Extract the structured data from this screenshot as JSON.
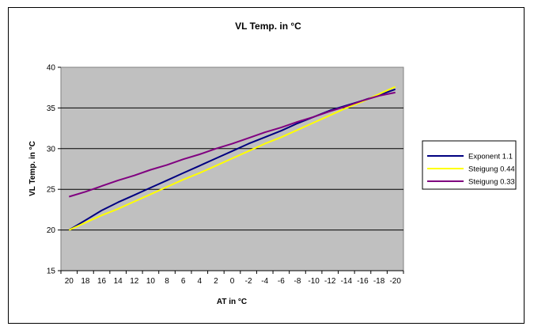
{
  "chart_data": {
    "type": "line",
    "title": "VL Temp. in °C",
    "xlabel": "AT in °C",
    "ylabel": "VL Temp. in °C",
    "x": [
      20,
      18,
      16,
      14,
      12,
      10,
      8,
      6,
      4,
      2,
      0,
      -2,
      -4,
      -6,
      -8,
      -10,
      -12,
      -14,
      -16,
      -18,
      -20
    ],
    "ylim": [
      15,
      40
    ],
    "yticks": [
      15,
      20,
      25,
      30,
      35,
      40
    ],
    "grid": true,
    "legend_position": "right",
    "plot_background": "#c0c0c0",
    "series": [
      {
        "name": "Exponent 1.1",
        "color": "#000080",
        "values": [
          20.0,
          21.2,
          22.4,
          23.4,
          24.3,
          25.2,
          26.1,
          27.0,
          27.9,
          28.8,
          29.7,
          30.6,
          31.4,
          32.2,
          33.1,
          33.9,
          34.7,
          35.3,
          35.9,
          36.6,
          37.3
        ]
      },
      {
        "name": "Steigung 0.44",
        "color": "#ffff00",
        "values": [
          20.0,
          20.9,
          21.8,
          22.6,
          23.5,
          24.4,
          25.3,
          26.2,
          27.0,
          27.9,
          28.8,
          29.7,
          30.6,
          31.4,
          32.3,
          33.2,
          34.1,
          35.0,
          35.8,
          36.7,
          37.6
        ]
      },
      {
        "name": "Steigung 0.33",
        "color": "#800080",
        "values": [
          24.1,
          24.7,
          25.4,
          26.1,
          26.7,
          27.4,
          28.0,
          28.7,
          29.3,
          30.0,
          30.6,
          31.3,
          32.0,
          32.6,
          33.3,
          33.9,
          34.6,
          35.2,
          35.9,
          36.5,
          36.9
        ]
      }
    ]
  }
}
